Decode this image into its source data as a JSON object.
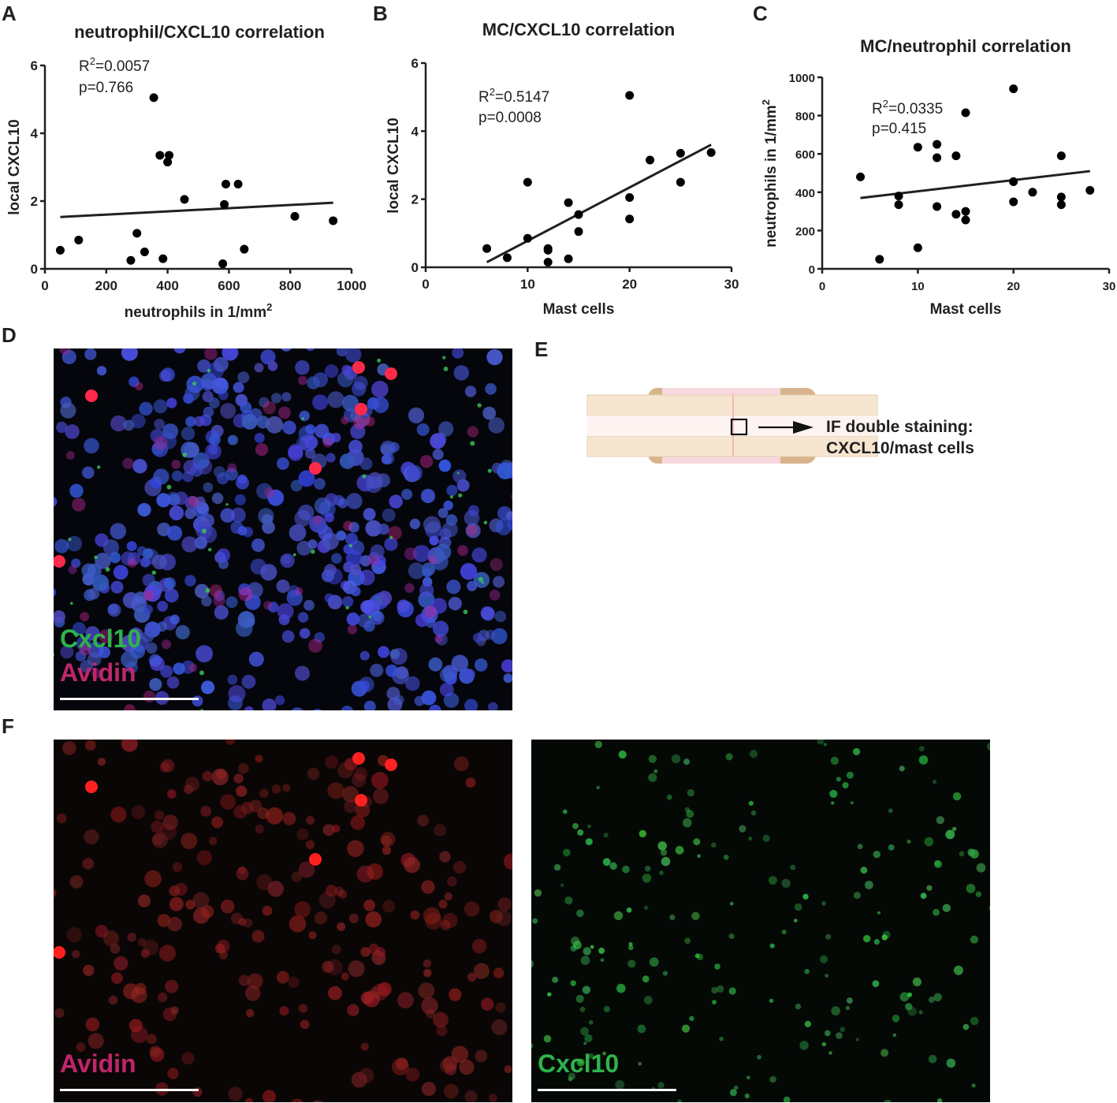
{
  "panel_labels": {
    "a": "A",
    "b": "B",
    "c": "C",
    "d": "D",
    "e": "E",
    "f": "F"
  },
  "chart_data": [
    {
      "id": "A",
      "type": "scatter",
      "title": "neutrophil/CXCL10 correlation",
      "xlabel": "neutrophils in 1/mm",
      "xlabel_sup": "2",
      "ylabel": "local CXCL10",
      "xlim": [
        0,
        1000
      ],
      "ylim": [
        0,
        6
      ],
      "xticks": [
        0,
        200,
        400,
        600,
        800,
        1000
      ],
      "yticks": [
        0,
        2,
        4,
        6
      ],
      "stat_r2": "=0.0057",
      "stat_p": "p=0.766",
      "points": [
        [
          50,
          0.55
        ],
        [
          110,
          0.85
        ],
        [
          280,
          0.25
        ],
        [
          300,
          1.05
        ],
        [
          325,
          0.5
        ],
        [
          355,
          5.05
        ],
        [
          375,
          3.35
        ],
        [
          385,
          0.3
        ],
        [
          400,
          3.15
        ],
        [
          405,
          3.35
        ],
        [
          455,
          2.05
        ],
        [
          580,
          0.15
        ],
        [
          585,
          1.9
        ],
        [
          590,
          2.5
        ],
        [
          630,
          2.5
        ],
        [
          650,
          0.58
        ],
        [
          815,
          1.55
        ],
        [
          940,
          1.42
        ]
      ],
      "fit": [
        [
          50,
          1.53
        ],
        [
          940,
          1.95
        ]
      ]
    },
    {
      "id": "B",
      "type": "scatter",
      "title": "MC/CXCL10 correlation",
      "xlabel": "Mast cells",
      "ylabel": "local CXCL10",
      "xlim": [
        0,
        30
      ],
      "ylim": [
        0,
        6
      ],
      "xticks": [
        0,
        10,
        20,
        30
      ],
      "yticks": [
        0,
        2,
        4,
        6
      ],
      "stat_r2": "=0.5147",
      "stat_p": "p=0.0008",
      "points": [
        [
          6,
          0.55
        ],
        [
          8,
          0.28
        ],
        [
          10,
          2.5
        ],
        [
          10,
          0.85
        ],
        [
          12,
          0.55
        ],
        [
          12,
          0.5
        ],
        [
          12,
          0.15
        ],
        [
          14,
          1.9
        ],
        [
          14,
          0.25
        ],
        [
          15,
          1.55
        ],
        [
          15,
          1.05
        ],
        [
          20,
          5.05
        ],
        [
          20,
          2.05
        ],
        [
          20,
          1.42
        ],
        [
          22,
          3.15
        ],
        [
          25,
          3.35
        ],
        [
          25,
          2.5
        ],
        [
          28,
          3.37
        ]
      ],
      "fit": [
        [
          6,
          0.15
        ],
        [
          28,
          3.6
        ]
      ]
    },
    {
      "id": "C",
      "type": "scatter",
      "title": "MC/neutrophil correlation",
      "xlabel": "Mast cells",
      "ylabel": "neutrophils in 1/mm",
      "ylabel_sup": "2",
      "xlim": [
        0,
        30
      ],
      "ylim": [
        0,
        1000
      ],
      "xticks": [
        0,
        10,
        20,
        30
      ],
      "yticks": [
        0,
        200,
        400,
        600,
        800,
        1000
      ],
      "stat_r2": "=0.0335",
      "stat_p": "p=0.415",
      "points": [
        [
          4,
          480
        ],
        [
          6,
          50
        ],
        [
          8,
          380
        ],
        [
          8,
          335
        ],
        [
          10,
          635
        ],
        [
          10,
          110
        ],
        [
          12,
          650
        ],
        [
          12,
          580
        ],
        [
          12,
          325
        ],
        [
          14,
          590
        ],
        [
          14,
          285
        ],
        [
          15,
          815
        ],
        [
          15,
          300
        ],
        [
          15,
          255
        ],
        [
          20,
          940
        ],
        [
          20,
          455
        ],
        [
          20,
          350
        ],
        [
          22,
          400
        ],
        [
          25,
          590
        ],
        [
          25,
          375
        ],
        [
          25,
          335
        ],
        [
          28,
          410
        ]
      ],
      "fit": [
        [
          4,
          370
        ],
        [
          28,
          510
        ]
      ]
    }
  ],
  "stat_r_prefix": "R",
  "stat_r_sup": "2",
  "panel_d": {
    "cxcl10": "Cxcl10",
    "avidin": "Avidin"
  },
  "panel_e": {
    "line1": "IF double staining:",
    "line2": "CXCL10/mast cells"
  },
  "panel_f": {
    "avidin": "Avidin",
    "cxcl10": "Cxcl10"
  },
  "colors": {
    "green_label": "#2fb34a",
    "magenta_label": "#c0266a",
    "red_label": "#d02060",
    "nuclei": "#3a4fc8",
    "mast_cell": "#ff2040"
  }
}
